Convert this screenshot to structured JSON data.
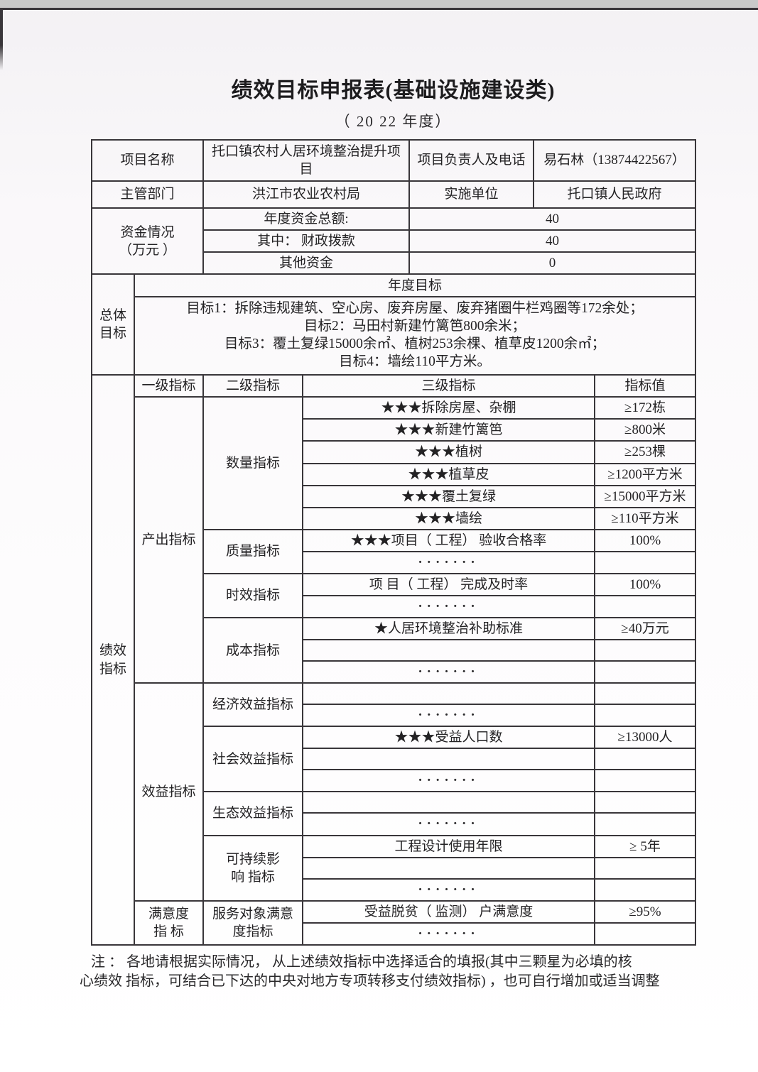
{
  "page": {
    "title": "绩效目标申报表(基础设施建设类)",
    "year_line": "（ 20 22   年度）"
  },
  "info": {
    "project_name_label": "项目名称",
    "project_name": "托口镇农村人居环境整治提升项目",
    "leader_label": "项目负责人及电话",
    "leader": "易石林（13874422567）",
    "dept_label": "主管部门",
    "dept": "洪江市农业农村局",
    "impl_label": "实施单位",
    "impl": "托口镇人民政府"
  },
  "funding": {
    "label": "资金情况\n（万元 ）",
    "rows": [
      {
        "label": "年度资金总额:",
        "value": "40"
      },
      {
        "label": "其中：  财政拨款",
        "value": "40"
      },
      {
        "label": "其他资金",
        "value": "0"
      }
    ]
  },
  "overall": {
    "label": "总体\n目标",
    "header": "年度目标",
    "goals": [
      "目标1：拆除违规建筑、空心房、废弃房屋、废弃猪圈牛栏鸡圈等172余处；",
      "目标2：马田村新建竹篱笆800余米；",
      "目标3：覆土复绿15000余㎡、植树253余棵、植草皮1200余㎡；",
      "目标4：墙绘110平方米。"
    ]
  },
  "indicators": {
    "left_label": "绩效\n指标",
    "headers": [
      "一级指标",
      "二级指标",
      "三级指标",
      "指标值"
    ],
    "groups": [
      {
        "level1": "产出指标",
        "level2": [
          {
            "name": "数量指标",
            "rows": [
              {
                "indicator": "★★★拆除房屋、杂棚",
                "value": "≥172栋"
              },
              {
                "indicator": "★★★新建竹篱笆",
                "value": "≥800米"
              },
              {
                "indicator": "★★★植树",
                "value": "≥253棵"
              },
              {
                "indicator": "★★★植草皮",
                "value": "≥1200平方米"
              },
              {
                "indicator": "★★★覆土复绿",
                "value": "≥15000平方米"
              },
              {
                "indicator": "★★★墙绘",
                "value": "≥110平方米"
              }
            ]
          },
          {
            "name": "质量指标",
            "rows": [
              {
                "indicator": "★★★项目（ 工程）  验收合格率",
                "value": "100%"
              },
              {
                "indicator": "·······",
                "value": ""
              }
            ]
          },
          {
            "name": "时效指标",
            "rows": [
              {
                "indicator": "项 目（ 工程）  完成及时率",
                "value": "100%"
              },
              {
                "indicator": "·······",
                "value": ""
              }
            ]
          },
          {
            "name": "成本指标",
            "rows": [
              {
                "indicator": "★人居环境整治补助标准",
                "value": "≥40万元"
              },
              {
                "indicator": "",
                "value": ""
              },
              {
                "indicator": "·······",
                "value": ""
              }
            ]
          }
        ]
      },
      {
        "level1": "效益指标",
        "level2": [
          {
            "name": "经济效益指标",
            "rows": [
              {
                "indicator": "",
                "value": ""
              },
              {
                "indicator": "·······",
                "value": ""
              }
            ]
          },
          {
            "name": "社会效益指标",
            "rows": [
              {
                "indicator": "★★★受益人口数",
                "value": "≥13000人"
              },
              {
                "indicator": "",
                "value": ""
              },
              {
                "indicator": "·······",
                "value": ""
              }
            ]
          },
          {
            "name": "生态效益指标",
            "rows": [
              {
                "indicator": "",
                "value": ""
              },
              {
                "indicator": "·······",
                "value": ""
              }
            ]
          },
          {
            "name": "可持续影\n响 指标",
            "rows": [
              {
                "indicator": "工程设计使用年限",
                "value": "≥ 5年"
              },
              {
                "indicator": "",
                "value": ""
              },
              {
                "indicator": "·······",
                "value": ""
              }
            ]
          }
        ]
      },
      {
        "level1": "满意度\n指 标",
        "level2": [
          {
            "name": "服务对象满意\n度指标",
            "rows": [
              {
                "indicator": "受益脱贫（ 监测）  户满意度",
                "value": "≥95%"
              },
              {
                "indicator": "·······",
                "value": ""
              }
            ]
          }
        ]
      }
    ]
  },
  "note": {
    "line1": "注 ：  各地请根据实际情况，  从上述绩效指标中选择适合的填报(其中三颗星为必填的核",
    "line2": "心绩效 指标，可结合已下达的中央对地方专项转移支付绩效指标) ，也可自行增加或适当调整"
  }
}
